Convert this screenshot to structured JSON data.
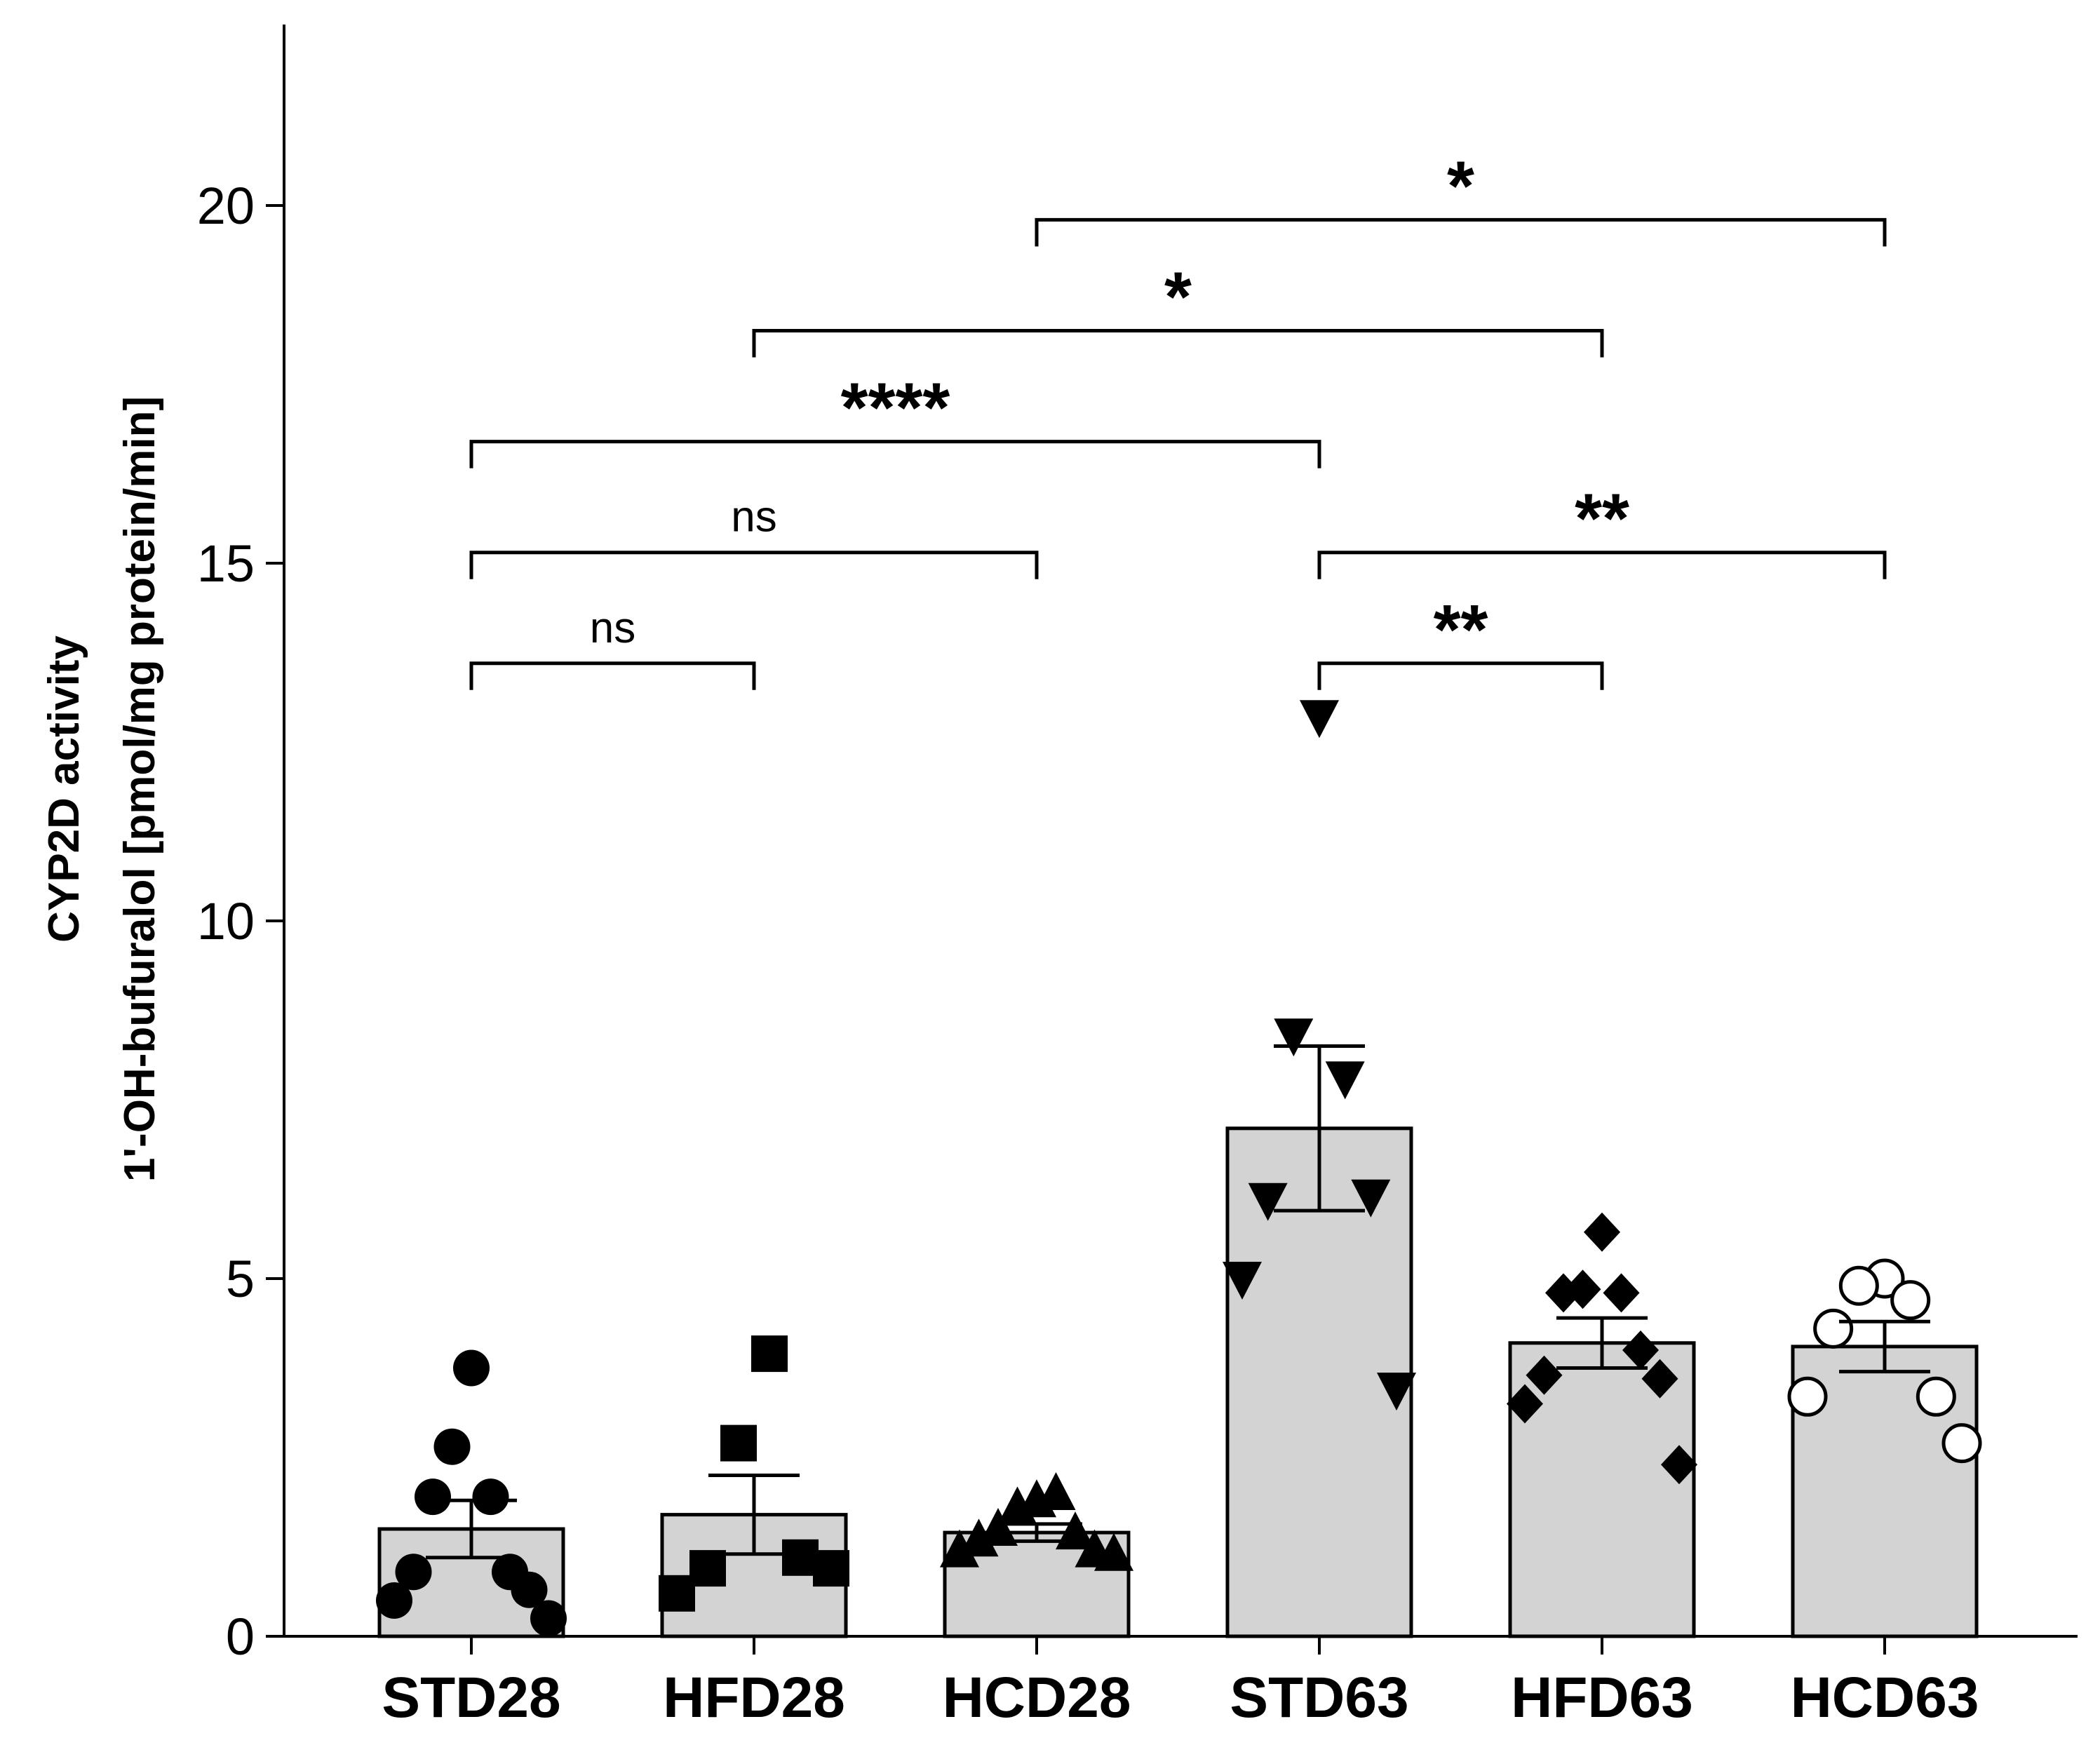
{
  "chart_data": {
    "type": "bar",
    "title": "",
    "ylabel_line1": "CYP2D activity",
    "ylabel_line2": "1'-OH-bufuralol [pmol/mg protein/min]",
    "xlabel": "",
    "ylim": [
      0,
      22.5
    ],
    "yticks": [
      0,
      5,
      10,
      15,
      20
    ],
    "ytick_labels": [
      "0",
      "5",
      "10",
      "15",
      "20"
    ],
    "categories": [
      "STD28",
      "HFD28",
      "HCD28",
      "STD63",
      "HFD63",
      "HCD63"
    ],
    "bar_color": "#d3d3d3",
    "groups": [
      {
        "name": "STD28",
        "marker": "filled-circle",
        "mean": 1.5,
        "sem": 0.4,
        "points": [
          3.75,
          2.65,
          1.95,
          1.95,
          0.9,
          0.9,
          0.65,
          0.5,
          0.25
        ]
      },
      {
        "name": "HFD28",
        "marker": "filled-square",
        "mean": 1.7,
        "sem": 0.55,
        "points": [
          3.95,
          2.7,
          1.1,
          0.95,
          0.95,
          0.6
        ]
      },
      {
        "name": "HCD28",
        "marker": "filled-triangle-up",
        "mean": 1.45,
        "sem": 0.12,
        "points": [
          1.9,
          1.8,
          2.0,
          1.5,
          1.45,
          1.35,
          1.2,
          1.2,
          1.15
        ]
      },
      {
        "name": "STD63",
        "marker": "filled-triangle-down",
        "mean": 7.1,
        "sem": 1.15,
        "points": [
          12.85,
          8.4,
          7.8,
          6.1,
          6.15,
          5.0,
          3.45
        ]
      },
      {
        "name": "HFD63",
        "marker": "filled-diamond",
        "mean": 4.1,
        "sem": 0.35,
        "points": [
          5.65,
          4.85,
          4.8,
          4.8,
          4.0,
          3.65,
          3.6,
          3.25,
          2.4
        ]
      },
      {
        "name": "HCD63",
        "marker": "open-circle",
        "mean": 4.05,
        "sem": 0.35,
        "points": [
          5.0,
          4.9,
          4.7,
          4.3,
          3.35,
          3.35,
          2.7
        ]
      }
    ],
    "significance": [
      {
        "from": "STD28",
        "to": "HFD28",
        "label": "ns",
        "y": 13.6
      },
      {
        "from": "STD28",
        "to": "HCD28",
        "label": "ns",
        "y": 15.15
      },
      {
        "from": "STD28",
        "to": "STD63",
        "label": "****",
        "y": 16.7
      },
      {
        "from": "HFD28",
        "to": "HFD63",
        "label": "*",
        "y": 18.25
      },
      {
        "from": "HCD28",
        "to": "HCD63",
        "label": "*",
        "y": 19.8
      },
      {
        "from": "STD63",
        "to": "HFD63",
        "label": "**",
        "y": 13.6
      },
      {
        "from": "STD63",
        "to": "HCD63",
        "label": "**",
        "y": 15.15
      }
    ]
  }
}
